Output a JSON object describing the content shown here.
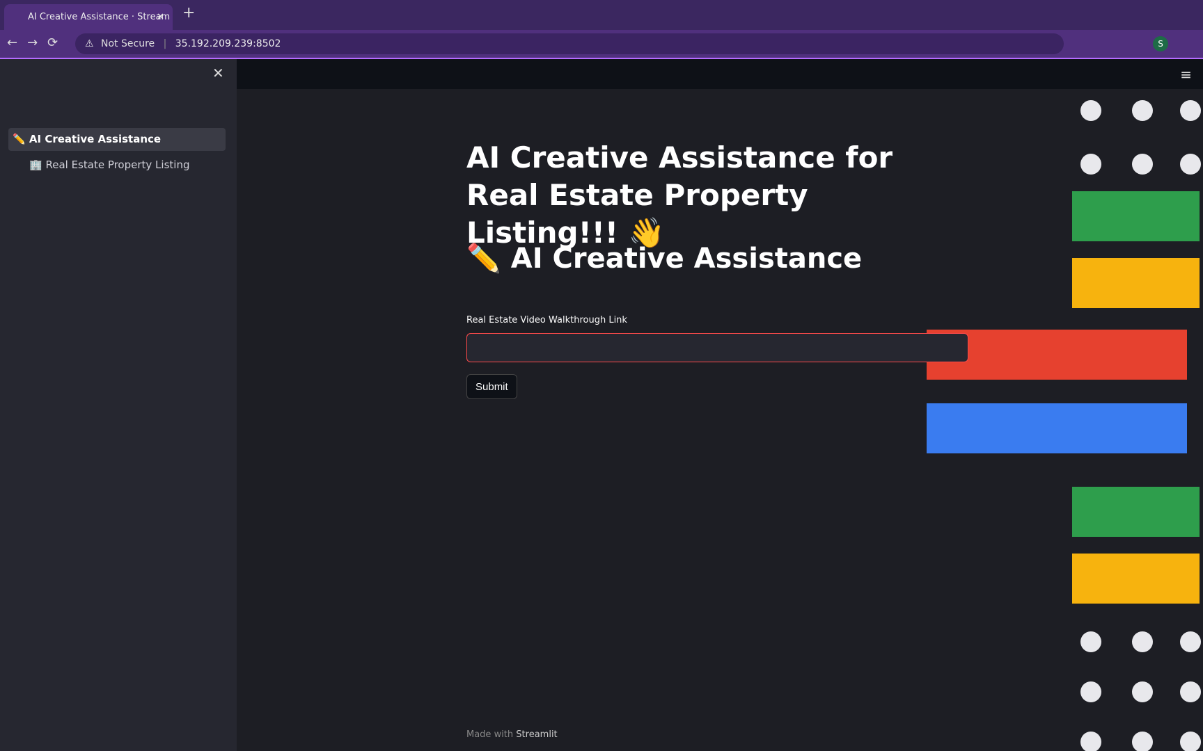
{
  "browser": {
    "tab_title": "AI Creative Assistance · Stream",
    "security": "Not Secure",
    "url": "35.192.209.239:8502",
    "profile": "S"
  },
  "sidebar": {
    "items": [
      {
        "icon": "✏️",
        "label": "AI Creative Assistance"
      },
      {
        "icon": "🏢",
        "label": "Real Estate Property Listing"
      }
    ]
  },
  "main": {
    "title": "AI Creative Assistance for Real Estate Property Listing!!! 👋",
    "header": "✏️ AI Creative Assistance",
    "input_label": "Real Estate Video Walkthrough Link",
    "button": "Submit"
  },
  "footer": {
    "prefix": "Made with",
    "brand": "Streamlit"
  }
}
